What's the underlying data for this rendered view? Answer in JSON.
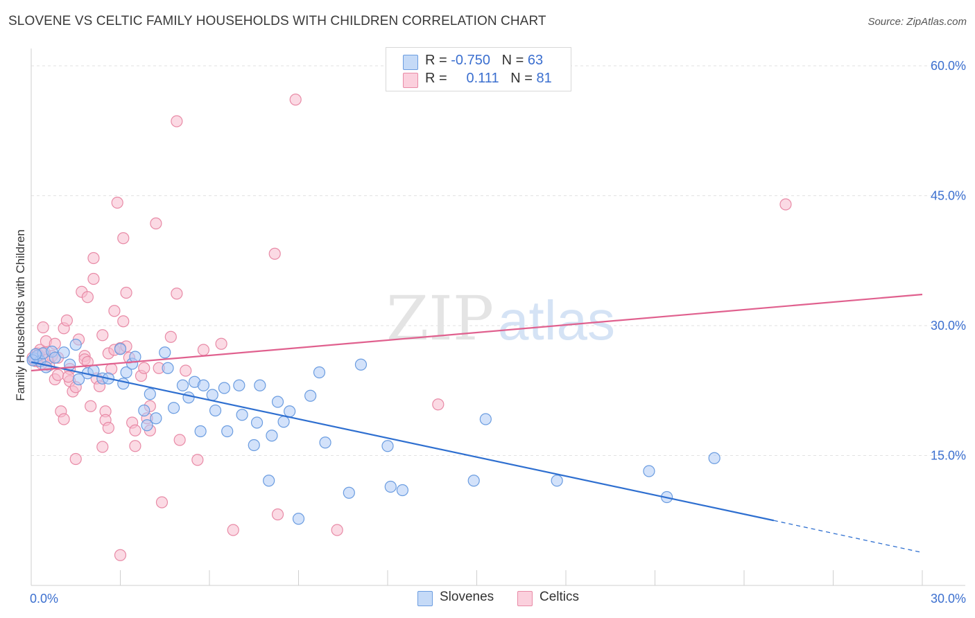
{
  "title": "SLOVENE VS CELTIC FAMILY HOUSEHOLDS WITH CHILDREN CORRELATION CHART",
  "source": "Source: ZipAtlas.com",
  "watermark": {
    "zip": "ZIP",
    "atlas": "atlas"
  },
  "legend": {
    "row1": {
      "r_label": "R = ",
      "r_value": "-0.750",
      "n_label": "N = ",
      "n_value": "63"
    },
    "row2": {
      "r_label": "R = ",
      "r_value": "0.111",
      "n_label": "N = ",
      "n_value": "81"
    },
    "bottom": [
      "Slovenes",
      "Celtics"
    ]
  },
  "colors": {
    "blue_fill": "#aecbf5",
    "blue_stroke": "#6a9ce0",
    "blue_line": "#2e6fd0",
    "pink_fill": "#f7bccd",
    "pink_stroke": "#e88aa6",
    "pink_line": "#e0608e",
    "axis_text": "#3b6fcf",
    "grid": "#e2e2e2"
  },
  "chart_data": {
    "type": "scatter",
    "title": "SLOVENE VS CELTIC FAMILY HOUSEHOLDS WITH CHILDREN CORRELATION CHART",
    "xlabel": "",
    "ylabel": "Family Households with Children",
    "xlim": [
      0,
      30
    ],
    "ylim": [
      0,
      62
    ],
    "x_tick_labels": [
      "0.0%",
      "30.0%"
    ],
    "y_ticks": [
      15,
      30,
      45,
      60
    ],
    "y_tick_labels": [
      "15.0%",
      "30.0%",
      "45.0%",
      "60.0%"
    ],
    "grid": true,
    "legend_position": "top-center",
    "series": [
      {
        "name": "Slovenes",
        "r": -0.75,
        "n": 63,
        "trend": {
          "x0": 0,
          "y0": 25.8,
          "x1": 25.0,
          "y1": 7.5,
          "dashed_to_x": 30,
          "dashed_to_y": 3.8
        },
        "points": [
          [
            0.1,
            26.2
          ],
          [
            0.2,
            26.5
          ],
          [
            0.3,
            25.9
          ],
          [
            0.4,
            26.8
          ],
          [
            0.5,
            25.2
          ],
          [
            0.7,
            27.0
          ],
          [
            0.8,
            26.3
          ],
          [
            1.1,
            26.9
          ],
          [
            1.3,
            25.5
          ],
          [
            1.5,
            27.8
          ],
          [
            1.6,
            23.8
          ],
          [
            1.9,
            24.5
          ],
          [
            2.1,
            24.8
          ],
          [
            2.4,
            23.9
          ],
          [
            2.6,
            23.9
          ],
          [
            3.0,
            27.3
          ],
          [
            3.1,
            23.3
          ],
          [
            3.2,
            24.6
          ],
          [
            3.4,
            25.6
          ],
          [
            3.5,
            26.4
          ],
          [
            3.8,
            20.2
          ],
          [
            3.9,
            18.5
          ],
          [
            4.0,
            22.1
          ],
          [
            4.2,
            19.3
          ],
          [
            4.5,
            26.9
          ],
          [
            4.6,
            25.1
          ],
          [
            4.8,
            20.5
          ],
          [
            5.1,
            23.1
          ],
          [
            5.3,
            21.7
          ],
          [
            5.5,
            23.5
          ],
          [
            5.8,
            23.1
          ],
          [
            5.7,
            17.8
          ],
          [
            6.1,
            22.0
          ],
          [
            6.2,
            20.2
          ],
          [
            6.5,
            22.8
          ],
          [
            6.6,
            17.8
          ],
          [
            7.0,
            23.1
          ],
          [
            7.1,
            19.7
          ],
          [
            7.5,
            16.2
          ],
          [
            7.6,
            18.8
          ],
          [
            7.7,
            23.1
          ],
          [
            8.0,
            12.1
          ],
          [
            8.1,
            17.3
          ],
          [
            8.3,
            21.2
          ],
          [
            8.5,
            18.9
          ],
          [
            8.7,
            20.1
          ],
          [
            9.0,
            7.7
          ],
          [
            9.4,
            21.9
          ],
          [
            9.7,
            24.6
          ],
          [
            9.9,
            16.5
          ],
          [
            10.7,
            10.7
          ],
          [
            11.1,
            25.5
          ],
          [
            12.0,
            16.1
          ],
          [
            12.1,
            11.4
          ],
          [
            12.5,
            11.0
          ],
          [
            14.9,
            12.1
          ],
          [
            15.3,
            19.2
          ],
          [
            17.7,
            12.1
          ],
          [
            20.8,
            13.2
          ],
          [
            21.4,
            10.2
          ],
          [
            23.0,
            14.7
          ],
          [
            0.05,
            26.0
          ],
          [
            0.15,
            26.7
          ]
        ]
      },
      {
        "name": "Celtics",
        "r": 0.111,
        "n": 81,
        "trend": {
          "x0": 0,
          "y0": 24.8,
          "x1": 30,
          "y1": 33.6
        },
        "points": [
          [
            0.1,
            26.0
          ],
          [
            0.2,
            26.8
          ],
          [
            0.3,
            27.2
          ],
          [
            0.4,
            29.8
          ],
          [
            0.5,
            28.2
          ],
          [
            0.6,
            25.4
          ],
          [
            0.7,
            26.5
          ],
          [
            0.8,
            27.9
          ],
          [
            0.9,
            26.3
          ],
          [
            0.8,
            23.8
          ],
          [
            0.9,
            24.3
          ],
          [
            1.0,
            20.1
          ],
          [
            1.1,
            19.2
          ],
          [
            1.1,
            29.7
          ],
          [
            1.2,
            30.6
          ],
          [
            1.3,
            25.0
          ],
          [
            1.3,
            23.6
          ],
          [
            1.4,
            22.4
          ],
          [
            1.5,
            22.9
          ],
          [
            1.5,
            14.6
          ],
          [
            1.6,
            28.4
          ],
          [
            1.7,
            33.9
          ],
          [
            1.8,
            26.5
          ],
          [
            1.9,
            33.3
          ],
          [
            1.8,
            26.1
          ],
          [
            1.9,
            25.8
          ],
          [
            2.0,
            20.7
          ],
          [
            2.1,
            37.8
          ],
          [
            2.1,
            35.4
          ],
          [
            2.2,
            23.9
          ],
          [
            2.3,
            23.0
          ],
          [
            2.4,
            28.9
          ],
          [
            2.4,
            16.0
          ],
          [
            2.5,
            20.1
          ],
          [
            2.5,
            19.1
          ],
          [
            2.6,
            18.2
          ],
          [
            2.6,
            26.8
          ],
          [
            2.7,
            25.0
          ],
          [
            2.8,
            31.7
          ],
          [
            2.8,
            27.2
          ],
          [
            2.9,
            44.2
          ],
          [
            3.0,
            27.4
          ],
          [
            3.0,
            3.5
          ],
          [
            3.1,
            30.5
          ],
          [
            3.1,
            40.1
          ],
          [
            3.2,
            33.8
          ],
          [
            3.2,
            27.6
          ],
          [
            3.3,
            26.3
          ],
          [
            3.4,
            18.8
          ],
          [
            3.5,
            16.1
          ],
          [
            3.5,
            17.9
          ],
          [
            3.7,
            24.2
          ],
          [
            3.8,
            25.1
          ],
          [
            3.9,
            19.3
          ],
          [
            4.0,
            20.7
          ],
          [
            4.0,
            17.9
          ],
          [
            4.2,
            41.8
          ],
          [
            4.3,
            25.1
          ],
          [
            4.4,
            9.6
          ],
          [
            4.7,
            28.7
          ],
          [
            4.9,
            33.7
          ],
          [
            4.9,
            53.6
          ],
          [
            5.0,
            16.8
          ],
          [
            5.2,
            24.8
          ],
          [
            5.6,
            14.5
          ],
          [
            5.8,
            27.2
          ],
          [
            6.4,
            27.9
          ],
          [
            6.8,
            6.4
          ],
          [
            8.2,
            38.3
          ],
          [
            8.3,
            8.2
          ],
          [
            8.9,
            56.1
          ],
          [
            10.3,
            6.4
          ],
          [
            13.7,
            20.9
          ],
          [
            25.4,
            44.0
          ],
          [
            0.05,
            26.3
          ],
          [
            0.15,
            25.9
          ],
          [
            0.25,
            26.6
          ],
          [
            0.35,
            25.6
          ],
          [
            0.45,
            26.9
          ],
          [
            0.55,
            26.1
          ],
          [
            1.25,
            24.1
          ]
        ]
      }
    ]
  }
}
